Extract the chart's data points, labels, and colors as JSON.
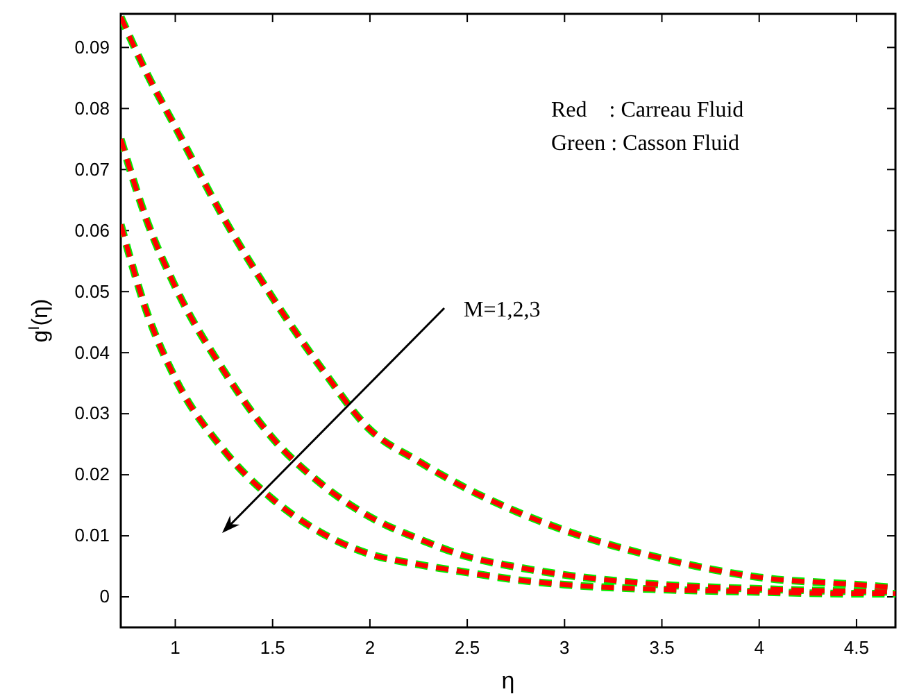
{
  "chart_data": {
    "type": "line",
    "xlabel": "η",
    "ylabel": "g$^{I}$(η)",
    "xlim": [
      0.72,
      4.7
    ],
    "ylim": [
      -0.005,
      0.0955
    ],
    "xticks": [
      1,
      1.5,
      2,
      2.5,
      3,
      3.5,
      4,
      4.5
    ],
    "yticks": [
      0,
      0.01,
      0.02,
      0.03,
      0.04,
      0.05,
      0.06,
      0.07,
      0.08,
      0.09
    ],
    "grid": false,
    "marker": "none",
    "line_style": "dashed",
    "annotations": [
      "Red    : Carreau Fluid",
      "Green : Casson Fluid",
      "M=1,2,3"
    ],
    "x": [
      0.72,
      0.85,
      1,
      1.25,
      1.5,
      1.75,
      2,
      2.25,
      2.5,
      2.75,
      3,
      3.5,
      4,
      4.5,
      4.7
    ],
    "series": [
      {
        "color": "#00ee00",
        "values": [
          0.095,
          0.086,
          0.077,
          0.062,
          0.049,
          0.0375,
          0.0274,
          0.0222,
          0.0177,
          0.014,
          0.0109,
          0.0063,
          0.0032,
          0.002,
          0.0015
        ]
      },
      {
        "color": "#00ee00",
        "values": [
          0.075,
          0.062,
          0.0508,
          0.037,
          0.026,
          0.0185,
          0.0131,
          0.0095,
          0.0066,
          0.0049,
          0.0036,
          0.002,
          0.0013,
          0.0009,
          0.0008
        ]
      },
      {
        "color": "#00ee00",
        "values": [
          0.061,
          0.047,
          0.0358,
          0.024,
          0.016,
          0.0105,
          0.007,
          0.0053,
          0.004,
          0.0028,
          0.002,
          0.0012,
          0.0008,
          0.0005,
          0.0005
        ]
      },
      {
        "color": "#ff0000",
        "values": [
          0.095,
          0.086,
          0.077,
          0.062,
          0.049,
          0.0375,
          0.0274,
          0.0222,
          0.0177,
          0.014,
          0.0109,
          0.0063,
          0.0032,
          0.002,
          0.0015
        ]
      },
      {
        "color": "#ff0000",
        "values": [
          0.075,
          0.062,
          0.0508,
          0.037,
          0.026,
          0.0185,
          0.0131,
          0.0095,
          0.0066,
          0.0049,
          0.0036,
          0.002,
          0.0013,
          0.0009,
          0.0008
        ]
      },
      {
        "color": "#ff0000",
        "values": [
          0.061,
          0.047,
          0.0358,
          0.024,
          0.016,
          0.0105,
          0.007,
          0.0053,
          0.004,
          0.0028,
          0.002,
          0.0012,
          0.0008,
          0.0005,
          0.0005
        ]
      }
    ]
  }
}
